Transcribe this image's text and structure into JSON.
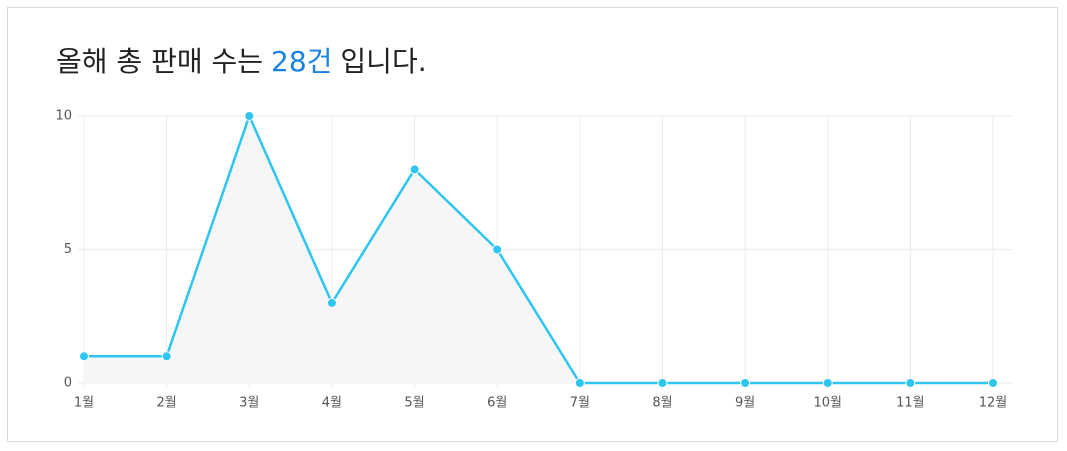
{
  "title_prefix": "올해 총 판매 수는",
  "title_highlight": "28건",
  "title_suffix": "입니다.",
  "chart_data": {
    "type": "line",
    "categories": [
      "1월",
      "2월",
      "3월",
      "4월",
      "5월",
      "6월",
      "7월",
      "8월",
      "9월",
      "10월",
      "11월",
      "12월"
    ],
    "values": [
      1,
      1,
      10,
      3,
      8,
      5,
      0,
      0,
      0,
      0,
      0,
      0
    ],
    "color": "#2ec5f0",
    "area_color": "#f6f6f6",
    "ylim": [
      0,
      10
    ],
    "yticks": [
      0,
      5,
      10
    ],
    "grid": true
  }
}
